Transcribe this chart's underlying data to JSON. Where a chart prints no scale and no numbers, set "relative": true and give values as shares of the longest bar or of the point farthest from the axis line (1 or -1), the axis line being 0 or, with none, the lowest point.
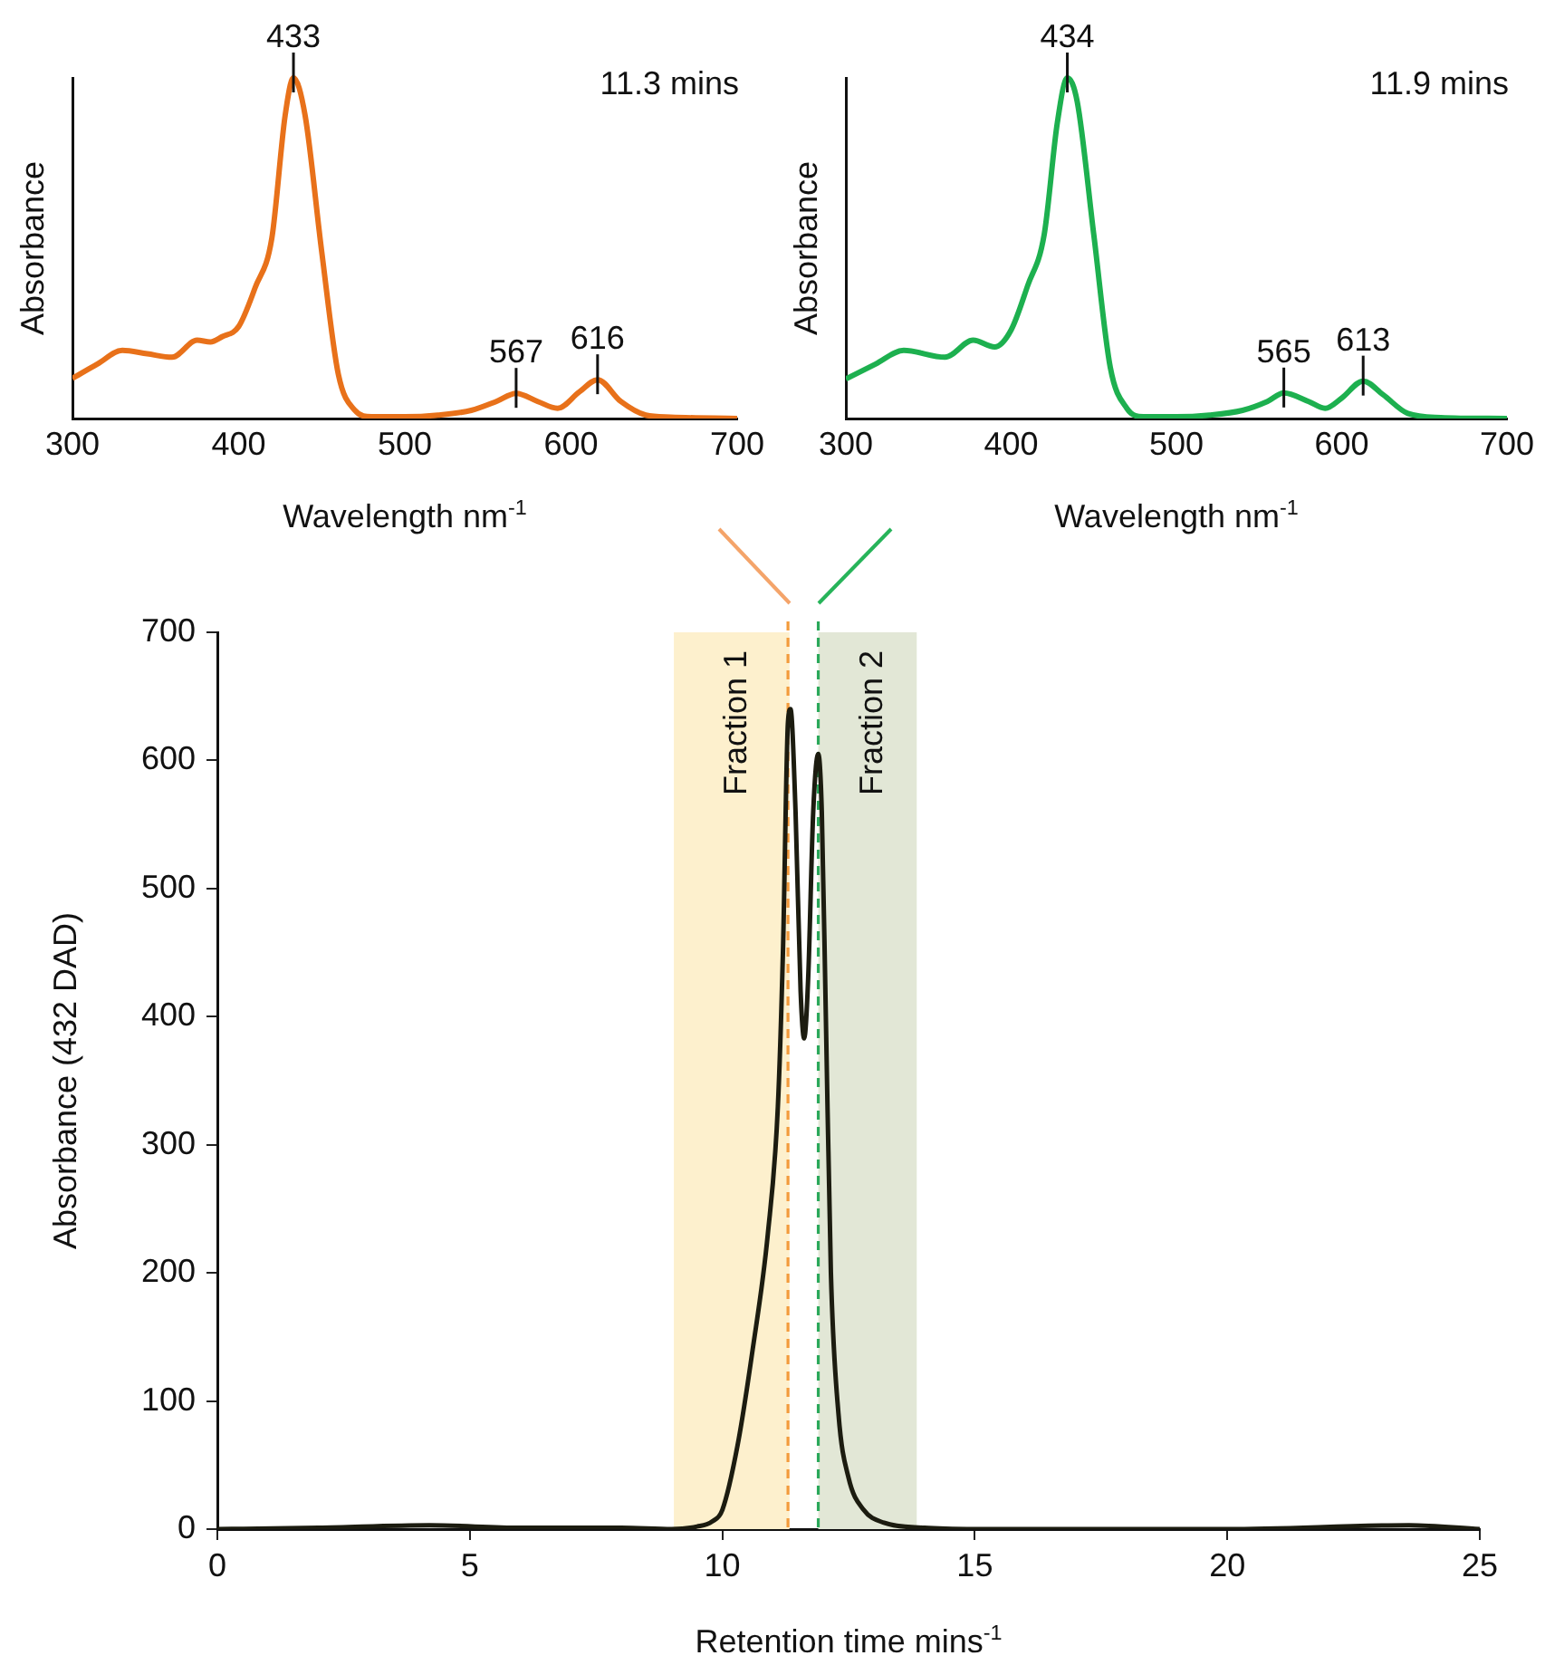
{
  "chart_data": [
    {
      "type": "line",
      "xlabel": "Wavelength nm$^{-1}$",
      "ylabel": "Absorbance",
      "xlim": [
        300,
        700
      ],
      "xticks": [
        300,
        400,
        500,
        600,
        700
      ],
      "relative": true,
      "series": [
        {
          "color": "#e8711a",
          "x": [
            300,
            315,
            330,
            345,
            360,
            375,
            383,
            390,
            400,
            410,
            420,
            428,
            433,
            440,
            450,
            460,
            470,
            480,
            500,
            520,
            540,
            555,
            567,
            580,
            592,
            605,
            616,
            630,
            645,
            660,
            700
          ],
          "values": [
            0.118,
            0.16,
            0.2,
            0.19,
            0.18,
            0.23,
            0.225,
            0.24,
            0.27,
            0.385,
            0.53,
            0.89,
            1,
            0.89,
            0.49,
            0.13,
            0.024,
            0.005,
            0.005,
            0.01,
            0.024,
            0.05,
            0.074,
            0.05,
            0.03,
            0.078,
            0.114,
            0.05,
            0.01,
            0.004,
            0
          ]
        }
      ],
      "annotations": [
        {
          "text": "433",
          "x": 433,
          "y": 1
        },
        {
          "text": "567",
          "x": 567,
          "y": 0.074
        },
        {
          "text": "616",
          "x": 616,
          "y": 0.114
        },
        "11.3 mins"
      ]
    },
    {
      "type": "line",
      "xlabel": "Wavelength nm$^{-1}$",
      "ylabel": "Absorbance",
      "xlim": [
        300,
        700
      ],
      "xticks": [
        300,
        400,
        500,
        600,
        700
      ],
      "relative": true,
      "series": [
        {
          "color": "#1db04f",
          "x": [
            300,
            318,
            335,
            360,
            377,
            390,
            400,
            410,
            420,
            428,
            434,
            440,
            450,
            460,
            470,
            480,
            500,
            520,
            540,
            555,
            565,
            580,
            590,
            600,
            613,
            625,
            640,
            660,
            700
          ],
          "values": [
            0.116,
            0.16,
            0.2,
            0.18,
            0.23,
            0.21,
            0.26,
            0.39,
            0.54,
            0.87,
            1,
            0.93,
            0.54,
            0.15,
            0.03,
            0.005,
            0.005,
            0.01,
            0.024,
            0.05,
            0.075,
            0.05,
            0.03,
            0.06,
            0.11,
            0.07,
            0.015,
            0.003,
            0
          ]
        }
      ],
      "annotations": [
        {
          "text": "434",
          "x": 434,
          "y": 1
        },
        {
          "text": "565",
          "x": 565,
          "y": 0.075
        },
        {
          "text": "613",
          "x": 613,
          "y": 0.11
        },
        "11.9 mins"
      ]
    },
    {
      "type": "line",
      "xlabel": "Retention time mins$^{-1}$",
      "ylabel": "Absorbance (432 DAD)",
      "xlim": [
        0,
        25
      ],
      "xticks": [
        0,
        5,
        10,
        15,
        20,
        25
      ],
      "ylim": [
        0,
        700
      ],
      "yticks": [
        0,
        100,
        200,
        300,
        400,
        500,
        600,
        700
      ],
      "series": [
        {
          "color": "#1c1c10",
          "x": [
            0,
            2,
            4.2,
            6,
            8,
            9,
            9.5,
            9.8,
            10,
            10.3,
            10.6,
            10.9,
            11.1,
            11.2,
            11.3,
            11.35,
            11.45,
            11.55,
            11.62,
            11.7,
            11.8,
            11.9,
            11.97,
            12.05,
            12.15,
            12.3,
            12.5,
            12.8,
            13.2,
            14,
            15,
            20,
            23.6,
            25
          ],
          "values": [
            0,
            1,
            3,
            1,
            1,
            0,
            2,
            6,
            15,
            65,
            140,
            230,
            330,
            450,
            630,
            640,
            560,
            420,
            383,
            430,
            560,
            605,
            560,
            400,
            200,
            90,
            40,
            15,
            5,
            1,
            0,
            0,
            3,
            0
          ]
        }
      ],
      "bands": [
        {
          "axis": "x",
          "from": 9.04,
          "to": 11.33,
          "label": "Fraction 1",
          "color": "#fdf0cd"
        },
        {
          "axis": "x",
          "from": 11.9,
          "to": 13.85,
          "label": "Fraction 2",
          "color": "#e2e7d6"
        }
      ],
      "ref_lines": [
        {
          "axis": "x",
          "value": 11.3,
          "color": "#f39b3c",
          "line_style": "dashed"
        },
        {
          "axis": "x",
          "value": 11.9,
          "color": "#2aa85a",
          "line_style": "dashed"
        }
      ]
    }
  ]
}
